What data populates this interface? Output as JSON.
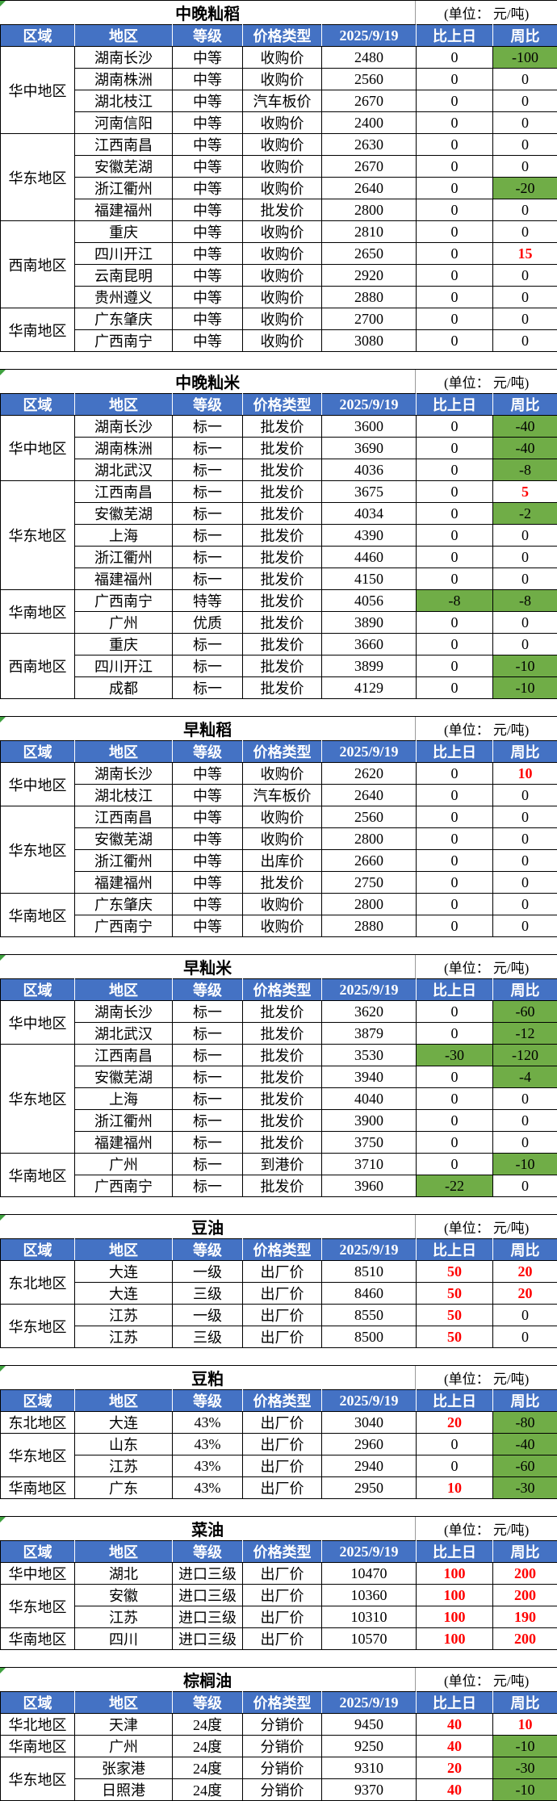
{
  "unit_label": "(单位： 元/吨)",
  "columns": [
    "区域",
    "地区",
    "等级",
    "价格类型",
    "2025/9/19",
    "比上日",
    "周比"
  ],
  "palette": {
    "header_bg": "#4472C4",
    "header_text": "#FFFFFF",
    "negative_bg": "#70AD47",
    "positive_text": "#FF0000",
    "border": "#000000",
    "flag_green": "#3FA13F"
  },
  "sections": [
    {
      "title": "中晚籼稻",
      "groups": [
        {
          "region": "华中地区",
          "rows": [
            [
              "湖南长沙",
              "中等",
              "收购价",
              "2480",
              "0",
              "-100"
            ],
            [
              "湖南株洲",
              "中等",
              "收购价",
              "2560",
              "0",
              "0"
            ],
            [
              "湖北枝江",
              "中等",
              "汽车板价",
              "2670",
              "0",
              "0"
            ],
            [
              "河南信阳",
              "中等",
              "收购价",
              "2400",
              "0",
              "0"
            ]
          ]
        },
        {
          "region": "华东地区",
          "rows": [
            [
              "江西南昌",
              "中等",
              "收购价",
              "2630",
              "0",
              "0"
            ],
            [
              "安徽芜湖",
              "中等",
              "收购价",
              "2670",
              "0",
              "0"
            ],
            [
              "浙江衢州",
              "中等",
              "收购价",
              "2640",
              "0",
              "-20"
            ],
            [
              "福建福州",
              "中等",
              "批发价",
              "2800",
              "0",
              "0"
            ]
          ]
        },
        {
          "region": "西南地区",
          "rows": [
            [
              "重庆",
              "中等",
              "收购价",
              "2810",
              "0",
              "0"
            ],
            [
              "四川开江",
              "中等",
              "收购价",
              "2650",
              "0",
              "15"
            ],
            [
              "云南昆明",
              "中等",
              "收购价",
              "2920",
              "0",
              "0"
            ],
            [
              "贵州遵义",
              "中等",
              "收购价",
              "2880",
              "0",
              "0"
            ]
          ]
        },
        {
          "region": "华南地区",
          "rows": [
            [
              "广东肇庆",
              "中等",
              "收购价",
              "2700",
              "0",
              "0"
            ],
            [
              "广西南宁",
              "中等",
              "收购价",
              "3080",
              "0",
              "0"
            ]
          ]
        }
      ]
    },
    {
      "title": "中晚籼米",
      "groups": [
        {
          "region": "华中地区",
          "rows": [
            [
              "湖南长沙",
              "标一",
              "批发价",
              "3600",
              "0",
              "-40"
            ],
            [
              "湖南株洲",
              "标一",
              "批发价",
              "3690",
              "0",
              "-40"
            ],
            [
              "湖北武汉",
              "标一",
              "批发价",
              "4036",
              "0",
              "-8"
            ]
          ]
        },
        {
          "region": "华东地区",
          "rows": [
            [
              "江西南昌",
              "标一",
              "批发价",
              "3675",
              "0",
              "5"
            ],
            [
              "安徽芜湖",
              "标一",
              "批发价",
              "4034",
              "0",
              "-2"
            ],
            [
              "上海",
              "标一",
              "批发价",
              "4390",
              "0",
              "0"
            ],
            [
              "浙江衢州",
              "标一",
              "批发价",
              "4460",
              "0",
              "0"
            ],
            [
              "福建福州",
              "标一",
              "批发价",
              "4150",
              "0",
              "0"
            ]
          ]
        },
        {
          "region": "华南地区",
          "rows": [
            [
              "广西南宁",
              "特等",
              "批发价",
              "4056",
              "-8",
              "-8"
            ],
            [
              "广州",
              "优质",
              "批发价",
              "3890",
              "0",
              "0"
            ]
          ]
        },
        {
          "region": "西南地区",
          "rows": [
            [
              "重庆",
              "标一",
              "批发价",
              "3660",
              "0",
              "0"
            ],
            [
              "四川开江",
              "标一",
              "批发价",
              "3899",
              "0",
              "-10"
            ],
            [
              "成都",
              "标一",
              "批发价",
              "4129",
              "0",
              "-10"
            ]
          ]
        }
      ]
    },
    {
      "title": "早籼稻",
      "groups": [
        {
          "region": "华中地区",
          "rows": [
            [
              "湖南长沙",
              "中等",
              "收购价",
              "2620",
              "0",
              "10"
            ],
            [
              "湖北枝江",
              "中等",
              "汽车板价",
              "2640",
              "0",
              "0"
            ]
          ]
        },
        {
          "region": "华东地区",
          "rows": [
            [
              "江西南昌",
              "中等",
              "收购价",
              "2560",
              "0",
              "0"
            ],
            [
              "安徽芜湖",
              "中等",
              "收购价",
              "2800",
              "0",
              "0"
            ],
            [
              "浙江衢州",
              "中等",
              "出库价",
              "2660",
              "0",
              "0"
            ],
            [
              "福建福州",
              "中等",
              "批发价",
              "2750",
              "0",
              "0"
            ]
          ]
        },
        {
          "region": "华南地区",
          "rows": [
            [
              "广东肇庆",
              "中等",
              "收购价",
              "2800",
              "0",
              "0"
            ],
            [
              "广西南宁",
              "中等",
              "收购价",
              "2880",
              "0",
              "0"
            ]
          ]
        }
      ]
    },
    {
      "title": "早籼米",
      "groups": [
        {
          "region": "华中地区",
          "rows": [
            [
              "湖南长沙",
              "标一",
              "批发价",
              "3620",
              "0",
              "-60"
            ],
            [
              "湖北武汉",
              "标一",
              "批发价",
              "3879",
              "0",
              "-12"
            ]
          ]
        },
        {
          "region": "华东地区",
          "rows": [
            [
              "江西南昌",
              "标一",
              "批发价",
              "3530",
              "-30",
              "-120"
            ],
            [
              "安徽芜湖",
              "标一",
              "批发价",
              "3940",
              "0",
              "-4"
            ],
            [
              "上海",
              "标一",
              "批发价",
              "4040",
              "0",
              "0"
            ],
            [
              "浙江衢州",
              "标一",
              "批发价",
              "3900",
              "0",
              "0"
            ],
            [
              "福建福州",
              "标一",
              "批发价",
              "3750",
              "0",
              "0"
            ]
          ]
        },
        {
          "region": "华南地区",
          "rows": [
            [
              "广州",
              "标一",
              "到港价",
              "3710",
              "0",
              "-10"
            ],
            [
              "广西南宁",
              "标一",
              "批发价",
              "3960",
              "-22",
              "0"
            ]
          ]
        }
      ]
    },
    {
      "title": "豆油",
      "groups": [
        {
          "region": "东北地区",
          "rows": [
            [
              "大连",
              "一级",
              "出厂价",
              "8510",
              "50",
              "20"
            ],
            [
              "大连",
              "三级",
              "出厂价",
              "8460",
              "50",
              "20"
            ]
          ]
        },
        {
          "region": "华东地区",
          "rows": [
            [
              "江苏",
              "一级",
              "出厂价",
              "8550",
              "50",
              "0"
            ],
            [
              "江苏",
              "三级",
              "出厂价",
              "8500",
              "50",
              "0"
            ]
          ]
        }
      ]
    },
    {
      "title": "豆粕",
      "groups": [
        {
          "region": "东北地区",
          "rows": [
            [
              "大连",
              "43%",
              "出厂价",
              "3040",
              "20",
              "-80"
            ]
          ]
        },
        {
          "region": "华东地区",
          "rows": [
            [
              "山东",
              "43%",
              "出厂价",
              "2960",
              "0",
              "-40"
            ],
            [
              "江苏",
              "43%",
              "出厂价",
              "2940",
              "0",
              "-60"
            ]
          ]
        },
        {
          "region": "华南地区",
          "rows": [
            [
              "广东",
              "43%",
              "出厂价",
              "2950",
              "10",
              "-30"
            ]
          ]
        }
      ]
    },
    {
      "title": "菜油",
      "groups": [
        {
          "region": "华中地区",
          "rows": [
            [
              "湖北",
              "进口三级",
              "出厂价",
              "10470",
              "100",
              "200"
            ]
          ]
        },
        {
          "region": "华东地区",
          "rows": [
            [
              "安徽",
              "进口三级",
              "出厂价",
              "10360",
              "100",
              "200"
            ],
            [
              "江苏",
              "进口三级",
              "出厂价",
              "10310",
              "100",
              "190"
            ]
          ]
        },
        {
          "region": "华南地区",
          "rows": [
            [
              "四川",
              "进口三级",
              "出厂价",
              "10570",
              "100",
              "200"
            ]
          ]
        }
      ]
    },
    {
      "title": "棕榈油",
      "groups": [
        {
          "region": "华北地区",
          "rows": [
            [
              "天津",
              "24度",
              "分销价",
              "9450",
              "40",
              "10"
            ]
          ]
        },
        {
          "region": "华南地区",
          "rows": [
            [
              "广州",
              "24度",
              "分销价",
              "9250",
              "40",
              "-10"
            ]
          ]
        },
        {
          "region": "华东地区",
          "rows": [
            [
              "张家港",
              "24度",
              "分销价",
              "9310",
              "20",
              "-30"
            ],
            [
              "日照港",
              "24度",
              "分销价",
              "9370",
              "40",
              "-10"
            ]
          ]
        }
      ]
    }
  ]
}
